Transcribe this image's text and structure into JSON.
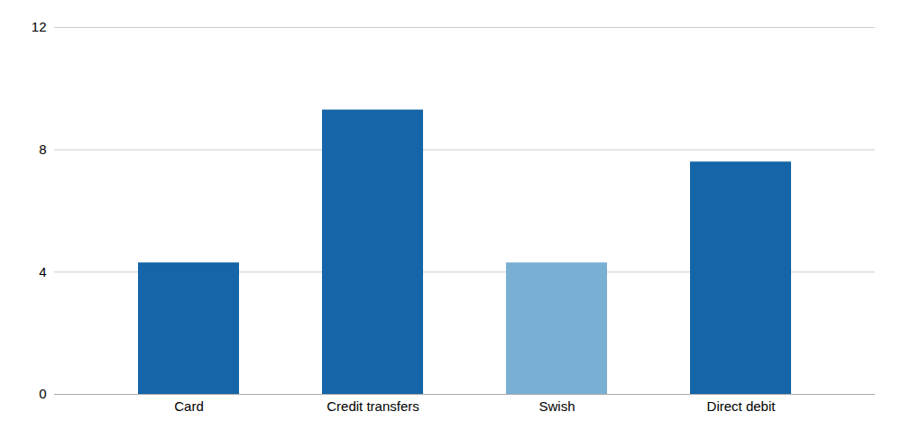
{
  "chart_data": {
    "type": "bar",
    "categories": [
      "Card",
      "Credit transfers",
      "Swish",
      "Direct debit"
    ],
    "values": [
      4.3,
      9.3,
      4.3,
      7.6
    ],
    "colors": [
      "#1565a8",
      "#1565a8",
      "#7aafd4",
      "#1565a8"
    ],
    "ylim": [
      0,
      12
    ],
    "yticks": [
      0,
      4,
      8,
      12
    ],
    "grid": true
  }
}
